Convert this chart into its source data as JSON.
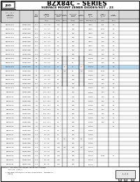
{
  "title": "BZX84C – SERIES",
  "subtitle": "SURFACE MOUNT ZENER DIODES/SOT – 23",
  "rows": [
    [
      "BZX84C2V1",
      "MMBZ5221B",
      "27.1",
      "2.0 - 2.8",
      "100",
      "",
      "400",
      "",
      "-0.085",
      "100",
      "1.0"
    ],
    [
      "BZX84C2V4",
      "MMBZ5222B",
      "27.4",
      "2.6 - 3.2",
      "60",
      "",
      "800",
      "",
      "-0.085",
      "10.00",
      "1.0"
    ],
    [
      "BZX84C2V7",
      "MMBZ5223B",
      "27.4",
      "2.1 - 3.8",
      "60",
      "",
      "800",
      "",
      "-0.065",
      "8.00",
      "1.0"
    ],
    [
      "BZX84C3V0",
      "MMBZ5224B",
      "27.4",
      "2.4 - 3.6",
      "60",
      "",
      "800",
      "",
      "-0.065",
      "5.00",
      "1.0"
    ],
    [
      "BZX84C3V3",
      "MMBZ5225B",
      "27.6",
      "3.7 - 4.1",
      "60",
      "",
      "800",
      "",
      "-0.065",
      "3.00",
      "1.0"
    ],
    [
      "BZX84C3V6",
      "MMBZ5226B",
      "27.1",
      "1.8 - 4.0",
      "60",
      "",
      "800",
      "",
      "-0.065",
      "3.00",
      "1.0"
    ],
    [
      "BZX84C3V9",
      "MMBZ5228B",
      "27.1",
      "1.6 - 4.6",
      "60",
      "",
      "800",
      "",
      "-0.075",
      "3.00",
      "1.0"
    ],
    [
      "BZX84C4V3",
      "MMBZ5229B",
      "27.1",
      "1.8 - 4.8",
      "60",
      "",
      "800",
      "",
      "-0.085",
      "3.00",
      "2.0"
    ],
    [
      "BZX84C4V7",
      "MMBZ5230B",
      "28",
      "4.2 - 5.0",
      "60",
      "",
      "500",
      "",
      "+0.025",
      "3.00",
      "2.0"
    ],
    [
      "BZX84C5V1",
      "MMBZ5231B",
      "28",
      "4.8 - 5.6",
      "10",
      "",
      "80",
      "",
      "+0.035",
      "3.00",
      "4.0"
    ],
    [
      "BZX84C5V6",
      "MMBZ5232B",
      "28",
      "4.6 - 7.2",
      "15",
      "5.6",
      "80",
      "1.0",
      "+0.045",
      "3.00",
      "4.0"
    ],
    [
      "BZX84C6V2",
      "MMBZ5233B",
      "27",
      "1.3 - 6.7",
      "15",
      "",
      "80",
      "",
      "+0.055",
      "0.750",
      "5.0"
    ],
    [
      "BZX84C6V8",
      "MMBZ5234B",
      "28",
      "0.5 - 8.0",
      "15",
      "",
      "150",
      "",
      "+0.065",
      "0.20",
      "5.0"
    ],
    [
      "BZX84C7V5",
      "MMBZ5235B",
      "28",
      "0.4 - 8.6",
      "20",
      "",
      "150",
      "",
      "+0.065",
      "0.50",
      "6.0"
    ],
    [
      "BZX84C8V2",
      "MMBZ5236B",
      "27.1",
      "0.1 - 1.4",
      "20",
      "",
      "150",
      "",
      "+0.075",
      "0.10",
      "6.0"
    ],
    [
      "BZX84C9V1",
      "MMBZ5237B",
      "Y5",
      "9.1 - 14.1",
      "26",
      "",
      "150",
      "",
      "+0.085",
      "0.10",
      "6.0"
    ],
    [
      "BZX84C10",
      "MMBZ5238B",
      "Y5",
      "9.1 - 14.1",
      "40",
      "",
      "150",
      "",
      "+0.085",
      "0.10",
      "6.0"
    ],
    [
      "BZX84C11",
      "MMBZ5239B",
      "Y5",
      "9.4 - 14.1",
      "40",
      "",
      "170",
      "",
      "+0.085",
      "0.10",
      "8.1"
    ],
    [
      "BZX84C12",
      "MMBZ5240B",
      "Y5",
      "9.1 - 14.1",
      "40",
      "",
      "200",
      "",
      "+0.085",
      "0.05",
      "8.1"
    ],
    [
      "BZX84C13",
      "MMBZ5241B",
      "Y5",
      "8.1 - 14.1",
      "40",
      "",
      "200",
      "",
      "+0.085",
      "0.05",
      "8.1"
    ],
    [
      "BZX84C15",
      "MMBZ5242B",
      "Y5",
      "8.1 - 21.1",
      "55",
      "",
      "200",
      "",
      "+0.085",
      "0.05",
      "8.1"
    ],
    [
      "BZX84C16",
      "MMBZ5244B",
      "Y6",
      "8.6 - 21.1",
      "55",
      "",
      "250",
      "",
      "+0.085",
      "0.05",
      "8.1"
    ],
    [
      "BZX84C18",
      "MMBZ5246B",
      "Y6",
      "8.6 - 21.1",
      "55",
      "",
      "250",
      "",
      "+0.085",
      "0.05",
      "8.1"
    ],
    [
      "BZX84C20",
      "MMBZ5248B",
      "Y6",
      "8.6 - 21.1",
      "55",
      "",
      "260",
      "",
      "+0.085",
      "0.05",
      "8.1"
    ],
    [
      "BZX84C22",
      "MMBZ5250B",
      "Y5",
      "15.1 - 26.0",
      "70",
      "",
      "300",
      "",
      "+0.085",
      "",
      "8.1"
    ],
    [
      "BZX84C24",
      "MMBZ5252B",
      "Y11",
      "16 - 33",
      "60",
      "",
      "500",
      "",
      "+0.085",
      "",
      ""
    ],
    [
      "BZX84C27",
      "MMBZ5254B",
      "Y11",
      "20 - 33",
      "60",
      "",
      "500",
      "",
      "+0.085",
      "",
      ""
    ],
    [
      "BZX84C30",
      "MMBZ5256B",
      "Y11",
      "24 - 38",
      "80",
      "4.0",
      "350",
      "0.5",
      "+0.085",
      "",
      ""
    ],
    [
      "BZX84C33",
      "MMBZ5258B",
      "Y14",
      "17 - 41",
      "100",
      "",
      "350",
      "",
      "+0.085",
      "",
      ""
    ],
    [
      "BZX84C36",
      "MMBZ5260B",
      "Y14",
      "24 - 44",
      "100",
      "",
      "500",
      "",
      "+0.102",
      "",
      ""
    ],
    [
      "BZX84C39",
      "MMBZ5262B",
      "Y14",
      "24 - 44",
      "100",
      "",
      "500",
      "",
      "+0.102",
      "",
      ""
    ],
    [
      "BZX84C43",
      "MMBZ5265B",
      "Y10",
      "40 - 50",
      "100",
      "",
      "500",
      "",
      "+0.102",
      "0.085",
      "21"
    ],
    [
      "BZX84C47",
      "MMBZ5267B",
      "Y11",
      "40 - 56",
      "100",
      "",
      "400",
      "",
      "+0.102",
      "",
      ""
    ],
    [
      "BZX84C51",
      "MMBZ5270B",
      "Y11",
      "40 - 60",
      "160",
      "",
      "400",
      "",
      "+0.102",
      "",
      ""
    ]
  ],
  "notes": [
    "Notes:1. Operating and storage Temperature Range:",
    "           -55°C to  +150°C",
    "      2. Package outline/SOT–23 pin configuration – topview as",
    "           figure"
  ],
  "highlight_row": 10,
  "merged_izt_rows": [
    8,
    14
  ],
  "merged_izt_val": "5.8",
  "merged_izt_val2": "1.0",
  "merged_izk_rows": [
    8,
    14
  ],
  "merged_izk_val": "1.0",
  "bg_color": "#ffffff"
}
